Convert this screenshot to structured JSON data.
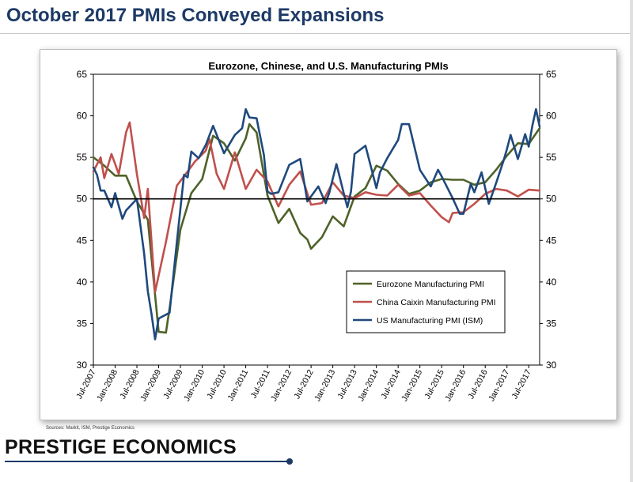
{
  "page": {
    "title": "October 2017 PMIs Conveyed Expansions",
    "sources": "Sources: Markit, ISM, Prestige Economics",
    "brand": "PRESTIGE ECONOMICS"
  },
  "chart_data": {
    "type": "line",
    "title": "Eurozone, Chinese, and U.S. Manufacturing PMIs",
    "xlabel": "",
    "ylabel": "",
    "x_start": "Jul-2007",
    "x_end": "Oct-2017",
    "x_ticks": [
      "Jul-2007",
      "Jan-2008",
      "Jul-2008",
      "Jan-2009",
      "Jul-2009",
      "Jan-2010",
      "Jul-2010",
      "Jan-2011",
      "Jul-2011",
      "Jan-2012",
      "Jul-2012",
      "Jan-2013",
      "Jul-2013",
      "Jan-2014",
      "Jul-2014",
      "Jan-2015",
      "Jul-2015",
      "Jan-2016",
      "Jul-2016",
      "Jan-2017",
      "Jul-2017"
    ],
    "ylim": [
      30,
      65
    ],
    "y_ticks": [
      30,
      35,
      40,
      45,
      50,
      55,
      60,
      65
    ],
    "y_ticks_right": [
      30,
      35,
      40,
      45,
      50,
      55,
      60,
      65
    ],
    "reference_line": 50,
    "grid": false,
    "legend_position": "lower-right",
    "series": [
      {
        "name": "Eurozone Manufacturing PMI",
        "color": "#4f6228",
        "values": [
          [
            "Jul-2007",
            55.0
          ],
          [
            "Oct-2007",
            54.0
          ],
          [
            "Jan-2008",
            52.8
          ],
          [
            "Apr-2008",
            52.8
          ],
          [
            "Jul-2008",
            49.7
          ],
          [
            "Oct-2008",
            47.5
          ],
          [
            "Jan-2009",
            34.0
          ],
          [
            "Mar-2009",
            33.9
          ],
          [
            "Apr-2009",
            36.8
          ],
          [
            "Jul-2009",
            46.3
          ],
          [
            "Oct-2009",
            50.7
          ],
          [
            "Jan-2010",
            52.4
          ],
          [
            "Apr-2010",
            57.6
          ],
          [
            "Jul-2010",
            56.7
          ],
          [
            "Oct-2010",
            54.6
          ],
          [
            "Jan-2011",
            57.3
          ],
          [
            "Feb-2011",
            59.0
          ],
          [
            "Apr-2011",
            58.0
          ],
          [
            "Jul-2011",
            50.4
          ],
          [
            "Oct-2011",
            47.1
          ],
          [
            "Jan-2012",
            48.8
          ],
          [
            "Apr-2012",
            45.9
          ],
          [
            "Jun-2012",
            45.1
          ],
          [
            "Jul-2012",
            44.0
          ],
          [
            "Oct-2012",
            45.4
          ],
          [
            "Jan-2013",
            47.9
          ],
          [
            "Apr-2013",
            46.7
          ],
          [
            "Jul-2013",
            50.3
          ],
          [
            "Oct-2013",
            51.3
          ],
          [
            "Jan-2014",
            54.0
          ],
          [
            "Apr-2014",
            53.4
          ],
          [
            "Jul-2014",
            51.8
          ],
          [
            "Oct-2014",
            50.6
          ],
          [
            "Jan-2015",
            51.0
          ],
          [
            "Apr-2015",
            52.0
          ],
          [
            "Jul-2015",
            52.4
          ],
          [
            "Oct-2015",
            52.3
          ],
          [
            "Jan-2016",
            52.3
          ],
          [
            "Apr-2016",
            51.7
          ],
          [
            "Jul-2016",
            52.0
          ],
          [
            "Oct-2016",
            53.5
          ],
          [
            "Jan-2017",
            55.2
          ],
          [
            "Apr-2017",
            56.7
          ],
          [
            "Jul-2017",
            56.6
          ],
          [
            "Oct-2017",
            58.5
          ]
        ]
      },
      {
        "name": "China Caixin Manufacturing PMI",
        "color": "#c0504d",
        "values": [
          [
            "Jul-2007",
            53.3
          ],
          [
            "Sep-2007",
            55.0
          ],
          [
            "Oct-2007",
            52.5
          ],
          [
            "Dec-2007",
            55.4
          ],
          [
            "Feb-2008",
            53.0
          ],
          [
            "Apr-2008",
            58.0
          ],
          [
            "May-2008",
            59.2
          ],
          [
            "Jul-2008",
            53.0
          ],
          [
            "Sep-2008",
            47.7
          ],
          [
            "Oct-2008",
            51.2
          ],
          [
            "Dec-2008",
            38.8
          ],
          [
            "Mar-2009",
            44.8
          ],
          [
            "Jun-2009",
            51.6
          ],
          [
            "Sep-2009",
            53.3
          ],
          [
            "Nov-2009",
            54.5
          ],
          [
            "Feb-2010",
            55.8
          ],
          [
            "Mar-2010",
            57.2
          ],
          [
            "May-2010",
            53.0
          ],
          [
            "Jul-2010",
            51.2
          ],
          [
            "Oct-2010",
            55.6
          ],
          [
            "Jan-2011",
            51.2
          ],
          [
            "Apr-2011",
            53.5
          ],
          [
            "Jul-2011",
            52.1
          ],
          [
            "Oct-2011",
            49.1
          ],
          [
            "Jan-2012",
            51.7
          ],
          [
            "Apr-2012",
            53.3
          ],
          [
            "Jul-2012",
            49.3
          ],
          [
            "Oct-2012",
            49.5
          ],
          [
            "Jan-2013",
            52.0
          ],
          [
            "Apr-2013",
            50.4
          ],
          [
            "Jul-2013",
            50.1
          ],
          [
            "Oct-2013",
            50.8
          ],
          [
            "Jan-2014",
            50.5
          ],
          [
            "Apr-2014",
            50.4
          ],
          [
            "Jul-2014",
            51.7
          ],
          [
            "Oct-2014",
            50.4
          ],
          [
            "Jan-2015",
            50.7
          ],
          [
            "Apr-2015",
            49.2
          ],
          [
            "Jul-2015",
            47.8
          ],
          [
            "Sep-2015",
            47.2
          ],
          [
            "Oct-2015",
            48.3
          ],
          [
            "Jan-2016",
            48.4
          ],
          [
            "Apr-2016",
            49.4
          ],
          [
            "Jul-2016",
            50.6
          ],
          [
            "Oct-2016",
            51.2
          ],
          [
            "Jan-2017",
            51.0
          ],
          [
            "Apr-2017",
            50.3
          ],
          [
            "Jul-2017",
            51.1
          ],
          [
            "Oct-2017",
            51.0
          ]
        ]
      },
      {
        "name": "US Manufacturing PMI (ISM)",
        "color": "#1f497d",
        "values": [
          [
            "Jul-2007",
            53.8
          ],
          [
            "Aug-2007",
            52.9
          ],
          [
            "Sep-2007",
            51.0
          ],
          [
            "Oct-2007",
            51.0
          ],
          [
            "Dec-2007",
            49.0
          ],
          [
            "Jan-2008",
            50.7
          ],
          [
            "Mar-2008",
            47.6
          ],
          [
            "Apr-2008",
            48.6
          ],
          [
            "Jul-2008",
            50.0
          ],
          [
            "Sep-2008",
            43.4
          ],
          [
            "Oct-2008",
            38.9
          ],
          [
            "Nov-2008",
            36.2
          ],
          [
            "Dec-2008",
            33.1
          ],
          [
            "Jan-2009",
            35.6
          ],
          [
            "Apr-2009",
            36.3
          ],
          [
            "Jun-2009",
            44.8
          ],
          [
            "Aug-2009",
            52.9
          ],
          [
            "Sep-2009",
            52.6
          ],
          [
            "Oct-2009",
            55.7
          ],
          [
            "Dec-2009",
            54.9
          ],
          [
            "Feb-2010",
            56.5
          ],
          [
            "Apr-2010",
            58.8
          ],
          [
            "Jul-2010",
            55.5
          ],
          [
            "Oct-2010",
            57.7
          ],
          [
            "Dec-2010",
            58.5
          ],
          [
            "Jan-2011",
            60.8
          ],
          [
            "Feb-2011",
            59.8
          ],
          [
            "Apr-2011",
            59.7
          ],
          [
            "Jun-2011",
            55.3
          ],
          [
            "Jul-2011",
            50.9
          ],
          [
            "Aug-2011",
            50.6
          ],
          [
            "Oct-2011",
            50.8
          ],
          [
            "Jan-2012",
            54.1
          ],
          [
            "Apr-2012",
            54.8
          ],
          [
            "Jun-2012",
            49.7
          ],
          [
            "Sep-2012",
            51.5
          ],
          [
            "Nov-2012",
            49.5
          ],
          [
            "Dec-2012",
            50.7
          ],
          [
            "Feb-2013",
            54.2
          ],
          [
            "Apr-2013",
            50.7
          ],
          [
            "May-2013",
            49.0
          ],
          [
            "Jun-2013",
            50.9
          ],
          [
            "Jul-2013",
            55.4
          ],
          [
            "Oct-2013",
            56.4
          ],
          [
            "Jan-2014",
            51.3
          ],
          [
            "Feb-2014",
            53.2
          ],
          [
            "Apr-2014",
            54.9
          ],
          [
            "Jul-2014",
            57.1
          ],
          [
            "Aug-2014",
            59.0
          ],
          [
            "Oct-2014",
            59.0
          ],
          [
            "Jan-2015",
            53.5
          ],
          [
            "Apr-2015",
            51.5
          ],
          [
            "Jun-2015",
            53.5
          ],
          [
            "Jul-2015",
            52.7
          ],
          [
            "Oct-2015",
            50.1
          ],
          [
            "Dec-2015",
            48.2
          ],
          [
            "Jan-2016",
            48.2
          ],
          [
            "Mar-2016",
            51.8
          ],
          [
            "Apr-2016",
            50.8
          ],
          [
            "Jun-2016",
            53.2
          ],
          [
            "Aug-2016",
            49.4
          ],
          [
            "Oct-2016",
            51.9
          ],
          [
            "Dec-2016",
            54.5
          ],
          [
            "Jan-2017",
            56.0
          ],
          [
            "Feb-2017",
            57.7
          ],
          [
            "Apr-2017",
            54.8
          ],
          [
            "Jun-2017",
            57.8
          ],
          [
            "Jul-2017",
            56.3
          ],
          [
            "Aug-2017",
            58.8
          ],
          [
            "Sep-2017",
            60.8
          ],
          [
            "Oct-2017",
            58.7
          ]
        ]
      }
    ]
  }
}
